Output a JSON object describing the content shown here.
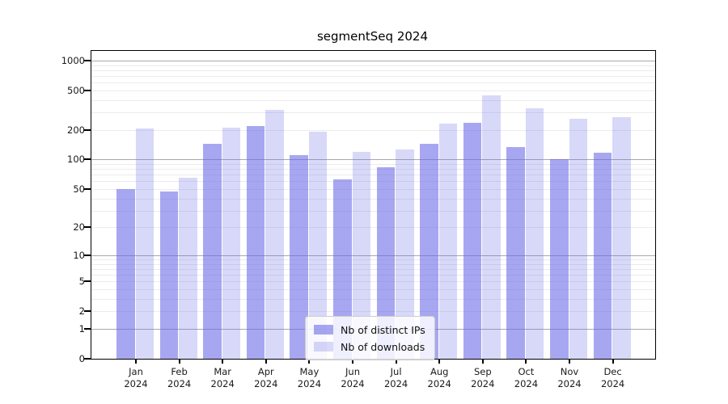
{
  "chart_data": {
    "type": "bar",
    "title": "segmentSeq 2024",
    "categories": [
      "Jan 2024",
      "Feb 2024",
      "Mar 2024",
      "Apr 2024",
      "May 2024",
      "Jun 2024",
      "Jul 2024",
      "Aug 2024",
      "Sep 2024",
      "Oct 2024",
      "Nov 2024",
      "Dec 2024"
    ],
    "series": [
      {
        "name": "Nb of distinct IPs",
        "color": "rgba(105,105,231,0.59)",
        "values": [
          50,
          47,
          145,
          218,
          110,
          63,
          84,
          145,
          235,
          135,
          100,
          118
        ]
      },
      {
        "name": "Nb of downloads",
        "color": "rgba(105,105,231,0.26)",
        "values": [
          205,
          65,
          212,
          320,
          193,
          120,
          126,
          230,
          445,
          330,
          258,
          270
        ]
      }
    ],
    "yscale": "log1p",
    "ylim": [
      0,
      1250
    ],
    "yticks": [
      {
        "label": "1000",
        "value": 1000
      },
      {
        "label": "500",
        "value": 500
      },
      {
        "label": "200",
        "value": 200
      },
      {
        "label": "100",
        "value": 100
      },
      {
        "label": "50",
        "value": 50
      },
      {
        "label": "20",
        "value": 20
      },
      {
        "label": "10",
        "value": 10
      },
      {
        "label": "5",
        "value": 5
      },
      {
        "label": "2",
        "value": 2
      },
      {
        "label": "1",
        "value": 1
      },
      {
        "label": "0",
        "value": 0
      }
    ],
    "xlabel": "",
    "ylabel": "",
    "grid": true,
    "grid_major_color": "#a9a9a9",
    "grid_minor_color": "#ebebeb",
    "legend_position": "bottom-center"
  }
}
